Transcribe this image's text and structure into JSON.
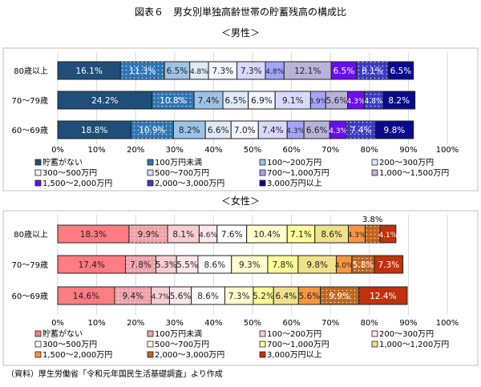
{
  "title": "図表６　男女別単独高齢世帯の貯蓄残高の構成比",
  "source": "（資料）厚生労働省「令和元年国民生活基礎調査」より作成",
  "chart_data": [
    {
      "type": "bar",
      "stacked": true,
      "orientation": "horizontal",
      "title": "＜男性＞",
      "xlim": [
        0,
        100
      ],
      "xticks": [
        "0%",
        "10%",
        "20%",
        "30%",
        "40%",
        "50%",
        "60%",
        "70%",
        "80%",
        "90%",
        "100%"
      ],
      "categories": [
        "80歳以上",
        "70～79歳",
        "60～69歳"
      ],
      "legend_position": "bottom",
      "series": [
        {
          "name": "貯蓄がない",
          "color": "#1f4e79",
          "values": [
            16.1,
            24.2,
            18.8
          ]
        },
        {
          "name": "100万円未満",
          "color": "#2e75b6",
          "dotted": true,
          "values": [
            11.3,
            10.8,
            10.9
          ]
        },
        {
          "name": "100～200万円",
          "color": "#9dc3e6",
          "values": [
            6.5,
            7.4,
            8.2
          ]
        },
        {
          "name": "200～300万円",
          "color": "#deebf7",
          "values": [
            4.8,
            6.5,
            6.6
          ]
        },
        {
          "name": "300～500万円",
          "color": "#f3f5ff",
          "values": [
            7.3,
            6.9,
            7.0
          ]
        },
        {
          "name": "500～700万円",
          "color": "#d9d9ff",
          "values": [
            7.3,
            9.1,
            7.4
          ]
        },
        {
          "name": "700～1,000万円",
          "color": "#a4a4ff",
          "values": [
            4.8,
            3.9,
            4.3
          ]
        },
        {
          "name": "1,000～1,500万円",
          "color": "#b9b3dc",
          "values": [
            12.1,
            5.6,
            6.6
          ]
        },
        {
          "name": "1,500～2,000万円",
          "color": "#6a0df0",
          "values": [
            6.5,
            4.3,
            4.3
          ]
        },
        {
          "name": "2,000～3,000万円",
          "color": "#3a3ac8",
          "dotted": true,
          "values": [
            8.1,
            4.8,
            7.4
          ]
        },
        {
          "name": "3,000万円以上",
          "color": "#0a0a8c",
          "values": [
            6.5,
            8.2,
            9.8
          ]
        }
      ]
    },
    {
      "type": "bar",
      "stacked": true,
      "orientation": "horizontal",
      "title": "＜女性＞",
      "xlim": [
        0,
        100
      ],
      "xticks": [
        "0%",
        "10%",
        "20%",
        "30%",
        "40%",
        "50%",
        "60%",
        "70%",
        "80%",
        "90%",
        "100%"
      ],
      "categories": [
        "80歳以上",
        "70～79歳",
        "60～69歳"
      ],
      "legend_position": "bottom",
      "annotation": "3.8%",
      "series": [
        {
          "name": "貯蓄がない",
          "color": "#ff7c80",
          "values": [
            18.3,
            17.4,
            14.6
          ]
        },
        {
          "name": "100万円未満",
          "color": "#f4a0a8",
          "dotted": true,
          "values": [
            9.9,
            7.8,
            9.4
          ]
        },
        {
          "name": "100～200万円",
          "color": "#f9cdd3",
          "values": [
            8.1,
            5.3,
            4.7
          ]
        },
        {
          "name": "200～300万円",
          "color": "#fce8ec",
          "values": [
            4.6,
            5.5,
            5.6
          ]
        },
        {
          "name": "300～500万円",
          "color": "#ffffff",
          "values": [
            7.6,
            8.6,
            8.6
          ]
        },
        {
          "name": "500～700万円",
          "color": "#ffffd0",
          "values": [
            10.4,
            9.3,
            7.3
          ]
        },
        {
          "name": "700～1,000万円",
          "color": "#ffff99",
          "values": [
            7.1,
            7.8,
            5.2
          ]
        },
        {
          "name": "1,000～1,200万円",
          "color": "#f0e28c",
          "values": [
            8.6,
            9.8,
            6.4
          ]
        },
        {
          "name": "1,500～2,000万円",
          "color": "#f7963f",
          "values": [
            4.3,
            4.0,
            5.6
          ]
        },
        {
          "name": "2,000～3,000万円",
          "color": "#c0651c",
          "dotted": true,
          "values": [
            3.8,
            5.8,
            9.9
          ]
        },
        {
          "name": "3,000万円以上",
          "color": "#c0320c",
          "values": [
            4.1,
            7.3,
            12.4
          ]
        }
      ]
    }
  ]
}
